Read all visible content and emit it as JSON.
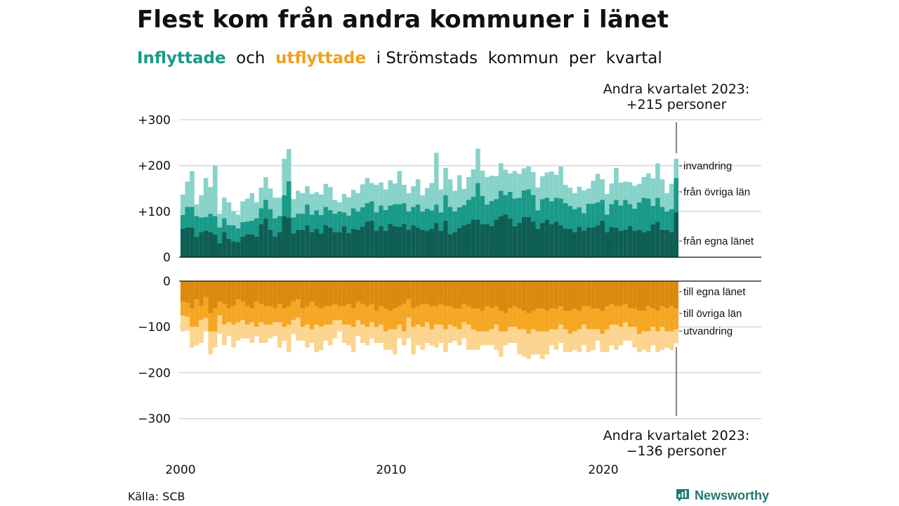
{
  "header": {
    "title": "Flest kom från andra kommuner i länet",
    "subtitle_in": "Inflyttade",
    "subtitle_mid": "  och  ",
    "subtitle_out": "utflyttade",
    "subtitle_rest": "  i Strömstads  kommun  per  kvartal"
  },
  "annotation_top": {
    "line1": "Andra kvartalet 2023:",
    "line2": "+215 personer"
  },
  "annotation_bottom": {
    "line1": "Andra kvartalet 2023:",
    "line2": "−136 personer"
  },
  "footer": {
    "source": "Källa: SCB",
    "brand": "Newsworthy"
  },
  "colors": {
    "in_egna": "#0e5e54",
    "in_ovriga": "#1a9a88",
    "in_invandring": "#88d3c9",
    "out_egna": "#dc8a0e",
    "out_ovriga": "#f5a623",
    "out_utvandring": "#fbd58f",
    "grid": "#d8d8d8",
    "brand": "#1f7a70"
  },
  "chart_data": {
    "type": "bar",
    "stacked": true,
    "x_start": "2000 Q1",
    "x_tick_labels": [
      "2000",
      "2010",
      "2020"
    ],
    "y_ticks": [
      "+300",
      "+200",
      "+100",
      "0",
      "0",
      "−100",
      "−200",
      "−300"
    ],
    "ylim": [
      -300,
      300
    ],
    "grid": true,
    "series_labels": {
      "in": [
        "invandring",
        "från övriga län",
        "från egna länet"
      ],
      "out": [
        "till egna länet",
        "till övriga län",
        "utvandring"
      ]
    },
    "inflow_egna": [
      62,
      65,
      65,
      45,
      55,
      58,
      55,
      50,
      30,
      55,
      40,
      35,
      33,
      45,
      50,
      50,
      45,
      72,
      85,
      60,
      45,
      55,
      90,
      86,
      52,
      60,
      60,
      70,
      55,
      62,
      52,
      70,
      65,
      55,
      55,
      68,
      53,
      62,
      60,
      67,
      78,
      80,
      58,
      68,
      58,
      73,
      68,
      66,
      73,
      60,
      70,
      65,
      60,
      58,
      62,
      75,
      58,
      80,
      50,
      55,
      64,
      70,
      73,
      82,
      82,
      72,
      73,
      68,
      82,
      90,
      94,
      85,
      68,
      75,
      88,
      88,
      78,
      62,
      75,
      82,
      72,
      78,
      70,
      63,
      62,
      55,
      67,
      58,
      65,
      65,
      70,
      80,
      55,
      66,
      65,
      58,
      60,
      68,
      58,
      60,
      55,
      58,
      72,
      78,
      60,
      60,
      55,
      98
    ],
    "inflow_ovriga": [
      30,
      45,
      45,
      45,
      32,
      30,
      40,
      40,
      35,
      30,
      30,
      35,
      30,
      32,
      28,
      30,
      40,
      35,
      40,
      45,
      40,
      35,
      45,
      80,
      35,
      35,
      35,
      45,
      38,
      40,
      40,
      40,
      38,
      40,
      45,
      30,
      38,
      45,
      40,
      42,
      40,
      42,
      40,
      45,
      45,
      40,
      48,
      50,
      45,
      40,
      40,
      50,
      40,
      48,
      40,
      40,
      40,
      55,
      60,
      45,
      45,
      44,
      52,
      50,
      80,
      62,
      42,
      55,
      45,
      55,
      42,
      58,
      60,
      55,
      58,
      60,
      58,
      40,
      52,
      48,
      50,
      52,
      58,
      55,
      50,
      50,
      42,
      38,
      52,
      52,
      50,
      45,
      38,
      50,
      60,
      55,
      65,
      48,
      48,
      60,
      75,
      70,
      40,
      52,
      50,
      40,
      50,
      75
    ],
    "inflow_invandring": [
      45,
      55,
      78,
      25,
      48,
      85,
      58,
      110,
      30,
      45,
      50,
      30,
      30,
      45,
      50,
      60,
      35,
      45,
      50,
      45,
      45,
      40,
      80,
      70,
      40,
      50,
      45,
      40,
      45,
      40,
      45,
      50,
      50,
      30,
      20,
      40,
      40,
      40,
      40,
      50,
      55,
      40,
      60,
      50,
      45,
      55,
      45,
      72,
      40,
      40,
      45,
      55,
      35,
      45,
      60,
      113,
      50,
      60,
      60,
      45,
      70,
      35,
      50,
      60,
      75,
      55,
      60,
      55,
      50,
      60,
      55,
      40,
      60,
      52,
      48,
      50,
      50,
      50,
      50,
      55,
      65,
      50,
      70,
      40,
      40,
      35,
      45,
      50,
      33,
      50,
      62,
      45,
      45,
      45,
      70,
      50,
      40,
      48,
      50,
      40,
      45,
      55,
      60,
      75,
      60,
      40,
      55,
      42
    ],
    "outflow_egna": [
      45,
      48,
      60,
      40,
      55,
      35,
      70,
      60,
      45,
      50,
      60,
      55,
      40,
      45,
      55,
      60,
      45,
      50,
      55,
      55,
      60,
      50,
      60,
      55,
      45,
      40,
      60,
      55,
      45,
      55,
      60,
      55,
      55,
      50,
      55,
      55,
      50,
      60,
      45,
      50,
      55,
      50,
      65,
      55,
      60,
      65,
      60,
      55,
      50,
      40,
      60,
      55,
      50,
      50,
      55,
      55,
      50,
      55,
      55,
      60,
      60,
      50,
      55,
      60,
      60,
      65,
      55,
      60,
      55,
      65,
      70,
      60,
      55,
      60,
      65,
      70,
      65,
      60,
      60,
      65,
      60,
      60,
      55,
      65,
      65,
      60,
      65,
      55,
      55,
      60,
      60,
      65,
      55,
      50,
      55,
      55,
      50,
      60,
      60,
      65,
      65,
      55,
      60,
      65,
      55,
      60,
      55,
      60
    ],
    "outflow_ovriga": [
      30,
      30,
      40,
      60,
      30,
      45,
      40,
      50,
      30,
      45,
      30,
      40,
      50,
      40,
      40,
      30,
      55,
      40,
      40,
      40,
      30,
      40,
      40,
      40,
      40,
      40,
      40,
      40,
      60,
      40,
      40,
      40,
      40,
      35,
      30,
      40,
      45,
      40,
      40,
      45,
      45,
      40,
      35,
      40,
      50,
      40,
      45,
      40,
      60,
      40,
      40,
      40,
      50,
      40,
      50,
      40,
      45,
      50,
      40,
      40,
      45,
      40,
      40,
      45,
      50,
      45,
      55,
      45,
      40,
      45,
      40,
      40,
      45,
      45,
      40,
      45,
      40,
      50,
      50,
      45,
      45,
      45,
      40,
      40,
      50,
      50,
      40,
      40,
      50,
      45,
      45,
      50,
      50,
      45,
      40,
      45,
      40,
      40,
      40,
      50,
      45,
      55,
      40,
      45,
      45,
      50,
      55,
      45
    ],
    "outflow_utvandring": [
      35,
      30,
      45,
      40,
      50,
      30,
      50,
      35,
      40,
      45,
      30,
      50,
      40,
      40,
      30,
      45,
      20,
      45,
      40,
      30,
      30,
      55,
      30,
      60,
      30,
      50,
      30,
      50,
      30,
      60,
      50,
      35,
      45,
      40,
      25,
      40,
      45,
      55,
      35,
      40,
      40,
      35,
      35,
      40,
      40,
      45,
      55,
      30,
      30,
      45,
      60,
      45,
      50,
      45,
      35,
      50,
      40,
      50,
      40,
      30,
      35,
      35,
      55,
      45,
      40,
      30,
      30,
      35,
      55,
      55,
      30,
      35,
      35,
      55,
      60,
      55,
      55,
      50,
      60,
      50,
      35,
      45,
      40,
      50,
      40,
      40,
      50,
      45,
      50,
      45,
      25,
      40,
      50,
      45,
      55,
      40,
      40,
      30,
      45,
      40,
      40,
      45,
      40,
      45,
      50,
      35,
      40,
      31
    ]
  }
}
